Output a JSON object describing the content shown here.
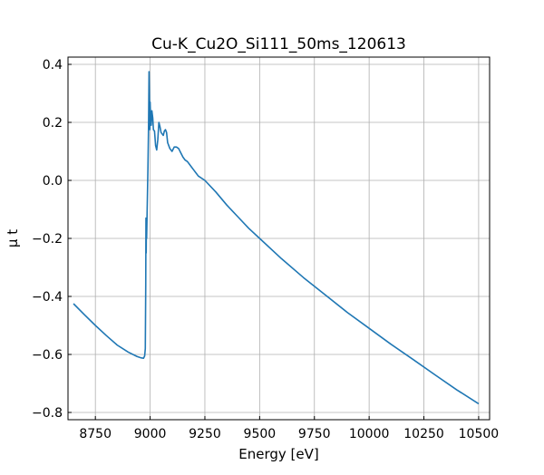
{
  "chart_data": {
    "type": "line",
    "title": "Cu-K_Cu2O_Si111_50ms_120613",
    "xlabel": "Energy [eV]",
    "ylabel": "μ t",
    "xlim": [
      8625,
      10550
    ],
    "ylim": [
      -0.825,
      0.425
    ],
    "xticks": [
      8750,
      9000,
      9250,
      9500,
      9750,
      10000,
      10250,
      10500
    ],
    "xtick_labels": [
      "8750",
      "9000",
      "9250",
      "9500",
      "9750",
      "10000",
      "10250",
      "10500"
    ],
    "yticks": [
      -0.8,
      -0.6,
      -0.4,
      -0.2,
      0.0,
      0.2,
      0.4
    ],
    "ytick_labels": [
      "−0.8",
      "−0.6",
      "−0.4",
      "−0.2",
      "0.0",
      "0.2",
      "0.4"
    ],
    "grid": true,
    "line_color": "#1f77b4",
    "series": [
      {
        "x": [
          8650,
          8700,
          8750,
          8800,
          8850,
          8900,
          8940,
          8960,
          8970,
          8975,
          8978,
          8980,
          8981,
          8982,
          8983,
          8984,
          8986,
          8990,
          8993,
          8995,
          8997,
          8999,
          9000,
          9002,
          9005,
          9008,
          9012,
          9015,
          9020,
          9025,
          9030,
          9035,
          9040,
          9045,
          9050,
          9055,
          9060,
          9065,
          9070,
          9075,
          9080,
          9090,
          9100,
          9110,
          9120,
          9130,
          9140,
          9150,
          9160,
          9170,
          9180,
          9190,
          9200,
          9210,
          9220,
          9250,
          9300,
          9350,
          9400,
          9450,
          9500,
          9600,
          9700,
          9800,
          9900,
          10000,
          10100,
          10200,
          10300,
          10400,
          10500
        ],
        "y": [
          -0.425,
          -0.463,
          -0.5,
          -0.535,
          -0.568,
          -0.592,
          -0.607,
          -0.612,
          -0.613,
          -0.605,
          -0.58,
          -0.36,
          -0.13,
          -0.25,
          -0.13,
          -0.2,
          -0.12,
          0.04,
          0.2,
          0.375,
          0.28,
          0.175,
          0.27,
          0.22,
          0.19,
          0.24,
          0.215,
          0.175,
          0.17,
          0.12,
          0.105,
          0.14,
          0.2,
          0.185,
          0.165,
          0.16,
          0.155,
          0.17,
          0.175,
          0.165,
          0.13,
          0.11,
          0.1,
          0.115,
          0.115,
          0.11,
          0.095,
          0.08,
          0.07,
          0.065,
          0.055,
          0.045,
          0.035,
          0.025,
          0.015,
          0.0,
          -0.04,
          -0.085,
          -0.125,
          -0.165,
          -0.2,
          -0.27,
          -0.335,
          -0.395,
          -0.455,
          -0.51,
          -0.565,
          -0.617,
          -0.67,
          -0.722,
          -0.77
        ]
      }
    ]
  }
}
